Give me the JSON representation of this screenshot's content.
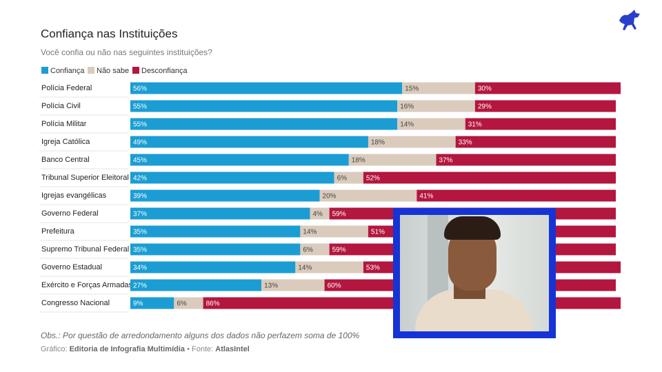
{
  "chart_data": {
    "type": "stacked-bar-horizontal",
    "title": "Confiança nas Instituições",
    "subtitle": "Você confia ou não nas seguintes instituições?",
    "categories": [
      "Polícia Federal",
      "Polícia Civil",
      "Polícia Militar",
      "Igreja Católica",
      "Banco Central",
      "Tribunal Superior Eleitoral",
      "Igrejas evangélicas",
      "Governo Federal",
      "Prefeitura",
      "Supremo Tribunal Federal",
      "Governo Estadual",
      "Exército e Forças Armadas",
      "Congresso Nacional"
    ],
    "series": [
      {
        "name": "Confiança",
        "color": "#1b9dd3",
        "values": [
          56,
          55,
          55,
          49,
          45,
          42,
          39,
          37,
          35,
          35,
          34,
          27,
          9
        ],
        "value_labels": [
          "56%",
          "55%",
          "55%",
          "49%",
          "45%",
          "42%",
          "39%",
          "37%",
          "35%",
          "35%",
          "34%",
          "27%",
          "9%"
        ]
      },
      {
        "name": "Não sabe",
        "color": "#dacbbd",
        "values": [
          15,
          16,
          14,
          18,
          18,
          6,
          20,
          4,
          14,
          6,
          14,
          13,
          6
        ],
        "value_labels": [
          "15%",
          "16%",
          "14%",
          "18%",
          "18%",
          "6%",
          "20%",
          "4%",
          "14%",
          "6%",
          "14%",
          "13%",
          "6%"
        ]
      },
      {
        "name": "Desconfiança",
        "color": "#b3163e",
        "values": [
          30,
          29,
          31,
          33,
          37,
          52,
          41,
          59,
          51,
          59,
          53,
          60,
          86
        ],
        "value_labels": [
          "30%",
          "29%",
          "31%",
          "33%",
          "37%",
          "52%",
          "41%",
          "59%",
          "51%",
          "59%",
          "53%",
          "60%",
          "86%"
        ]
      }
    ],
    "note": "Obs.: Por questão de arredondamento alguns dos dados não perfazem soma de 100%",
    "credit_label": "Gráfico:",
    "credit_name": "Editoria de Infografia Multimídia",
    "source_label": "• Fonte:",
    "source_name": "AtlasIntel"
  }
}
